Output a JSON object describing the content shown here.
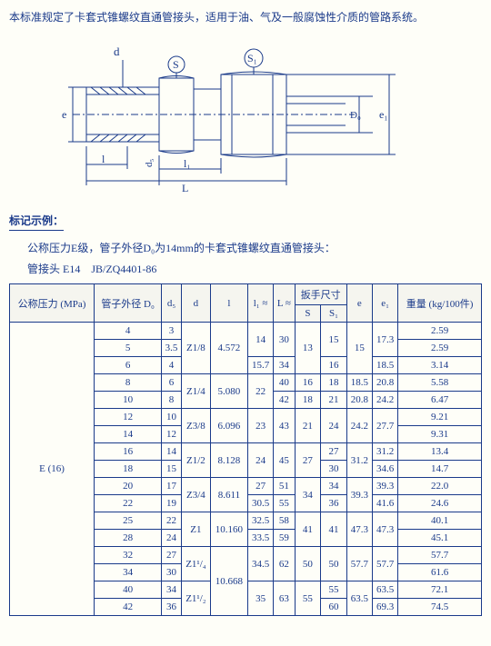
{
  "intro": "本标准规定了卡套式锥螺纹直通管接头，适用于油、气及一般腐蚀性介质的管路系统。",
  "diagram": {
    "labels": {
      "d": "d",
      "S": "S",
      "S1": "S₁",
      "e": "e",
      "e1": "e₁",
      "d5": "d₅",
      "D0": "D₀",
      "l": "l",
      "l1": "l₁",
      "L": "L"
    },
    "stroke": "#1a3a8a",
    "fill": "#fefef8"
  },
  "section_title": "标记示例：",
  "example_line1": "公称压力E级，管子外径D₀为14mm的卡套式锥螺纹直通管接头：",
  "example_line2": "管接头 E14　JB/ZQ4401-86",
  "table": {
    "headers": {
      "p": "公称压力 (MPa)",
      "D0": "管子外径 D₀",
      "d5": "d₅",
      "d": "d",
      "l": "l",
      "l1": "l₁ ≈",
      "L": "L ≈",
      "wrench": "扳手尺寸",
      "S": "S",
      "S1": "S₁",
      "e": "e",
      "e1": "e₁",
      "wt": "重量 (kg/100件)"
    },
    "pressure": "E (16)",
    "rows": [
      {
        "D0": "4",
        "d5": "3",
        "d": "Z1/8",
        "l": "4.572",
        "l1": "14",
        "L": "30",
        "S": "13",
        "S1": "15",
        "e": "15",
        "e1": "17.3",
        "wt": "2.59"
      },
      {
        "D0": "5",
        "d5": "3.5",
        "d": "Z1/8",
        "l": "4.572",
        "l1": "14",
        "L": "30",
        "S": "13",
        "S1": "15",
        "e": "15",
        "e1": "17.3",
        "wt": "2.59"
      },
      {
        "D0": "6",
        "d5": "4",
        "d": "Z1/8",
        "l": "4.572",
        "l1": "15.7",
        "L": "34",
        "S": "13",
        "S1": "16",
        "e": "15",
        "e1": "18.5",
        "wt": "3.14"
      },
      {
        "D0": "8",
        "d5": "6",
        "d": "Z1/4",
        "l": "5.080",
        "l1": "22",
        "L": "40",
        "S": "16",
        "S1": "18",
        "e": "18.5",
        "e1": "20.8",
        "wt": "5.58"
      },
      {
        "D0": "10",
        "d5": "8",
        "d": "Z1/4",
        "l": "5.080",
        "l1": "22",
        "L": "42",
        "S": "18",
        "S1": "21",
        "e": "20.8",
        "e1": "24.2",
        "wt": "6.47"
      },
      {
        "D0": "12",
        "d5": "10",
        "d": "Z3/8",
        "l": "6.096",
        "l1": "23",
        "L": "43",
        "S": "21",
        "S1": "24",
        "e": "24.2",
        "e1": "27.7",
        "wt": "9.21"
      },
      {
        "D0": "14",
        "d5": "12",
        "d": "Z3/8",
        "l": "6.096",
        "l1": "23",
        "L": "43",
        "S": "21",
        "S1": "24",
        "e": "24.2",
        "e1": "27.7",
        "wt": "9.31"
      },
      {
        "D0": "16",
        "d5": "14",
        "d": "Z1/2",
        "l": "8.128",
        "l1": "24",
        "L": "45",
        "S": "27",
        "S1": "27",
        "e": "31.2",
        "e1": "31.2",
        "wt": "13.4"
      },
      {
        "D0": "18",
        "d5": "15",
        "d": "Z1/2",
        "l": "8.128",
        "l1": "24",
        "L": "45",
        "S": "27",
        "S1": "30",
        "e": "31.2",
        "e1": "34.6",
        "wt": "14.7"
      },
      {
        "D0": "20",
        "d5": "17",
        "d": "Z3/4",
        "l": "8.611",
        "l1": "27",
        "L": "51",
        "S": "34",
        "S1": "34",
        "e": "39.3",
        "e1": "39.3",
        "wt": "22.0"
      },
      {
        "D0": "22",
        "d5": "19",
        "d": "Z3/4",
        "l": "8.611",
        "l1": "30.5",
        "L": "55",
        "S": "34",
        "S1": "36",
        "e": "39.3",
        "e1": "41.6",
        "wt": "24.6"
      },
      {
        "D0": "25",
        "d5": "22",
        "d": "Z1",
        "l": "10.160",
        "l1": "32.5",
        "L": "58",
        "S": "41",
        "S1": "41",
        "e": "47.3",
        "e1": "47.3",
        "wt": "40.1"
      },
      {
        "D0": "28",
        "d5": "24",
        "d": "Z1",
        "l": "10.160",
        "l1": "33.5",
        "L": "59",
        "S": "41",
        "S1": "41",
        "e": "47.3",
        "e1": "47.3",
        "wt": "45.1"
      },
      {
        "D0": "32",
        "d5": "27",
        "d": "Z1¹/₄",
        "l": "10.668",
        "l1": "34.5",
        "L": "62",
        "S": "50",
        "S1": "50",
        "e": "57.7",
        "e1": "57.7",
        "wt": "57.7"
      },
      {
        "D0": "34",
        "d5": "30",
        "d": "Z1¹/₄",
        "l": "10.668",
        "l1": "34.5",
        "L": "62",
        "S": "50",
        "S1": "50",
        "e": "57.7",
        "e1": "57.7",
        "wt": "61.6"
      },
      {
        "D0": "40",
        "d5": "34",
        "d": "Z1¹/₂",
        "l": "10.668",
        "l1": "35",
        "L": "63",
        "S": "55",
        "S1": "55",
        "e": "63.5",
        "e1": "63.5",
        "wt": "72.1"
      },
      {
        "D0": "42",
        "d5": "36",
        "d": "Z1¹/₂",
        "l": "10.668",
        "l1": "35",
        "L": "63",
        "S": "55",
        "S1": "60",
        "e": "63.5",
        "e1": "69.3",
        "wt": "74.5"
      }
    ]
  }
}
